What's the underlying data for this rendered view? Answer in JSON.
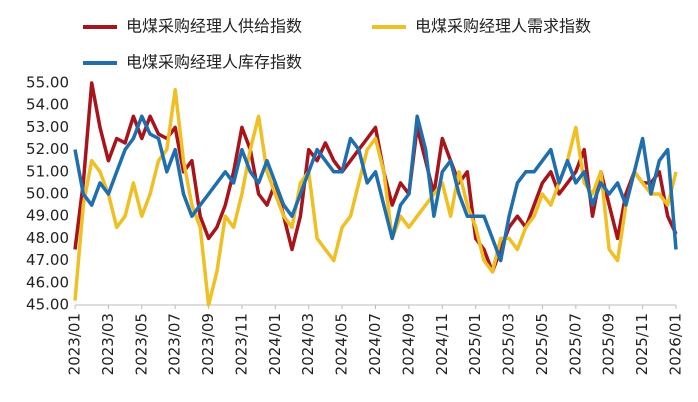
{
  "chart_data": {
    "type": "line",
    "categories": [
      "2023/01",
      null,
      null,
      null,
      "2023/03",
      null,
      null,
      null,
      "2023/05",
      null,
      null,
      null,
      "2023/07",
      null,
      null,
      null,
      "2023/09",
      null,
      null,
      null,
      "2023/11",
      null,
      null,
      null,
      "2024/01",
      null,
      null,
      null,
      "2024/03",
      null,
      null,
      null,
      "2024/05",
      null,
      null,
      null,
      "2024/07",
      null,
      null,
      null,
      "2024/09",
      null,
      null,
      null,
      "2024/11",
      null,
      null,
      null,
      "2025/01",
      null,
      null,
      null,
      "2025/03",
      null,
      null,
      null,
      "2025/05",
      null,
      null,
      null,
      "2025/07",
      null,
      null,
      null,
      "2025/09",
      null,
      null,
      null,
      "2025/11",
      null,
      null,
      null,
      "2026/01"
    ],
    "series": [
      {
        "name": "电煤采购经理人供给指数",
        "color": "#a8141c",
        "values": [
          47.5,
          50.5,
          55,
          53,
          51.5,
          52.5,
          52.3,
          53.5,
          52.5,
          53.5,
          52.7,
          52.5,
          53,
          51,
          51.5,
          49,
          48,
          48.5,
          49.5,
          51,
          53,
          52,
          50,
          49.5,
          50.5,
          49,
          47.5,
          49,
          52,
          51.5,
          52.3,
          51.5,
          51,
          51.5,
          52,
          52.5,
          53,
          51,
          49.5,
          50.5,
          50,
          53,
          51.5,
          50,
          52.5,
          51.5,
          50.5,
          51,
          48,
          47.5,
          46.5,
          47.5,
          48.5,
          49,
          48.5,
          49.5,
          50.5,
          51,
          50,
          50.5,
          51,
          52,
          49,
          51,
          49.5,
          48,
          50,
          51,
          50.5,
          50.5,
          51,
          49,
          48.2
        ]
      },
      {
        "name": "电煤采购经理人需求指数",
        "color": "#f0bf24",
        "values": [
          45.2,
          49.5,
          51.5,
          51,
          50,
          48.5,
          49,
          50.5,
          49,
          50,
          51.5,
          52,
          54.7,
          51.5,
          49.5,
          48.5,
          45,
          46.5,
          49,
          48.5,
          50,
          52,
          53.5,
          51,
          50,
          49,
          48.5,
          50.5,
          51,
          48,
          47.5,
          47,
          48.5,
          49,
          50.5,
          52,
          52.5,
          51,
          48,
          49,
          48.5,
          49,
          49.5,
          50,
          50.5,
          49,
          51,
          49.5,
          48.5,
          47,
          46.5,
          48,
          48,
          47.5,
          48.5,
          49,
          50,
          49.5,
          50.5,
          51.5,
          53,
          50.5,
          50,
          51,
          47.5,
          47,
          49.5,
          51,
          50.5,
          50,
          50,
          49.5,
          51
        ]
      },
      {
        "name": "电煤采购经理人库存指数",
        "color": "#1f6eae",
        "values": [
          52,
          50,
          49.5,
          50.5,
          50,
          51,
          52,
          52.5,
          53.5,
          52.7,
          52.5,
          51,
          52,
          50,
          49,
          49.5,
          50,
          50.5,
          51,
          50.5,
          52,
          51,
          50.5,
          51.5,
          50.5,
          49.5,
          49,
          50,
          51,
          52,
          51.5,
          51,
          51,
          52.5,
          52,
          50.5,
          51,
          49.5,
          48,
          49.5,
          50,
          53.5,
          52,
          49,
          51,
          51.5,
          50,
          49,
          49,
          49,
          48,
          47,
          49,
          50.5,
          51,
          51,
          51.5,
          52,
          50.5,
          51.5,
          50.5,
          51,
          49.5,
          50.5,
          50,
          50.5,
          49.5,
          51,
          52.5,
          50,
          51.5,
          52,
          47.5
        ]
      }
    ],
    "ylim": [
      45,
      55
    ],
    "yticks": [
      {
        "value": 45,
        "label": "45.00"
      },
      {
        "value": 46,
        "label": "46.00"
      },
      {
        "value": 47,
        "label": "47.00"
      },
      {
        "value": 48,
        "label": "48.00"
      },
      {
        "value": 49,
        "label": "49.00"
      },
      {
        "value": 50,
        "label": "50.00"
      },
      {
        "value": 51,
        "label": "51.00"
      },
      {
        "value": 52,
        "label": "52.00"
      },
      {
        "value": 53,
        "label": "53.00"
      },
      {
        "value": 54,
        "label": "54.00"
      },
      {
        "value": 55,
        "label": "55.00"
      }
    ],
    "grid": false
  }
}
